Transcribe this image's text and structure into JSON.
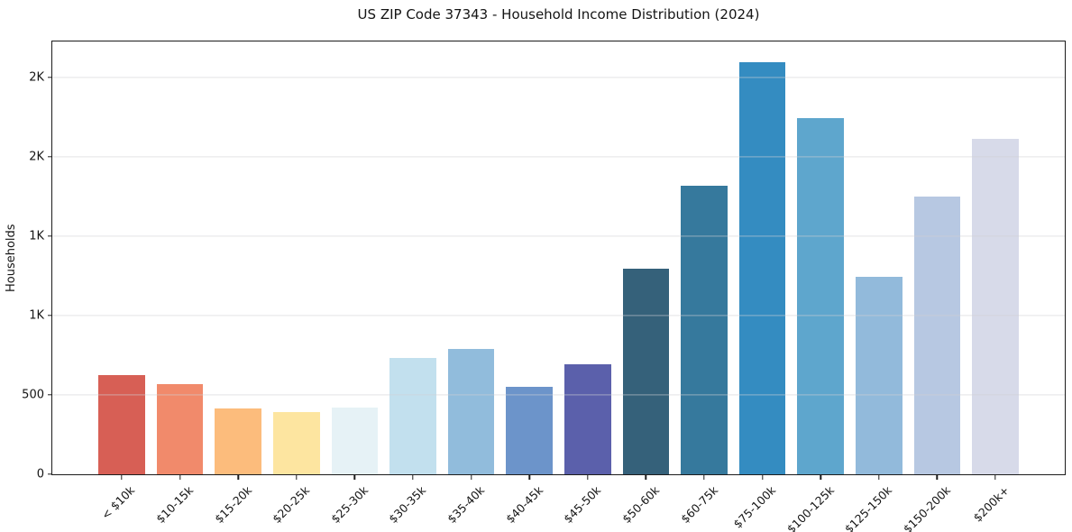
{
  "chart_data": {
    "type": "bar",
    "title": "US ZIP Code 37343 - Household Income Distribution (2024)",
    "xlabel": "",
    "ylabel": "Households",
    "categories": [
      "< $10k",
      "$10-15k",
      "$15-20k",
      "$20-25k",
      "$25-30k",
      "$30-35k",
      "$35-40k",
      "$40-45k",
      "$45-50k",
      "$50-60k",
      "$60-75k",
      "$75-100k",
      "$100-125k",
      "$125-150k",
      "$150-200k",
      "$200k+"
    ],
    "values": [
      625,
      570,
      415,
      390,
      420,
      730,
      790,
      550,
      695,
      1295,
      1815,
      2595,
      2245,
      1245,
      1750,
      2110
    ],
    "bar_colors": [
      "#d75f55",
      "#f18a6b",
      "#fcbc7c",
      "#fde5a0",
      "#e6f2f6",
      "#c2e0ee",
      "#91bcdc",
      "#6c94ca",
      "#5b60ab",
      "#35617a",
      "#36799d",
      "#348cc1",
      "#5ea6cd",
      "#92badb",
      "#b7c8e2",
      "#d7dae9"
    ],
    "ylim": [
      0,
      2725
    ],
    "xlim": [
      -1.19,
      16.19
    ],
    "bar_width": 0.8,
    "grid": true,
    "grid_axis": "y",
    "legend": "none",
    "yticks": [
      {
        "value": 0,
        "label": "0"
      },
      {
        "value": 500,
        "label": "500"
      },
      {
        "value": 1000,
        "label": "1K"
      },
      {
        "value": 1500,
        "label": "1K"
      },
      {
        "value": 2000,
        "label": "2K"
      },
      {
        "value": 2500,
        "label": "2K"
      }
    ],
    "colors": {
      "axis_spine": "#1c1c1c",
      "gridline": "#e9e9e9",
      "text": "#151515",
      "background": "#ffffff"
    }
  }
}
